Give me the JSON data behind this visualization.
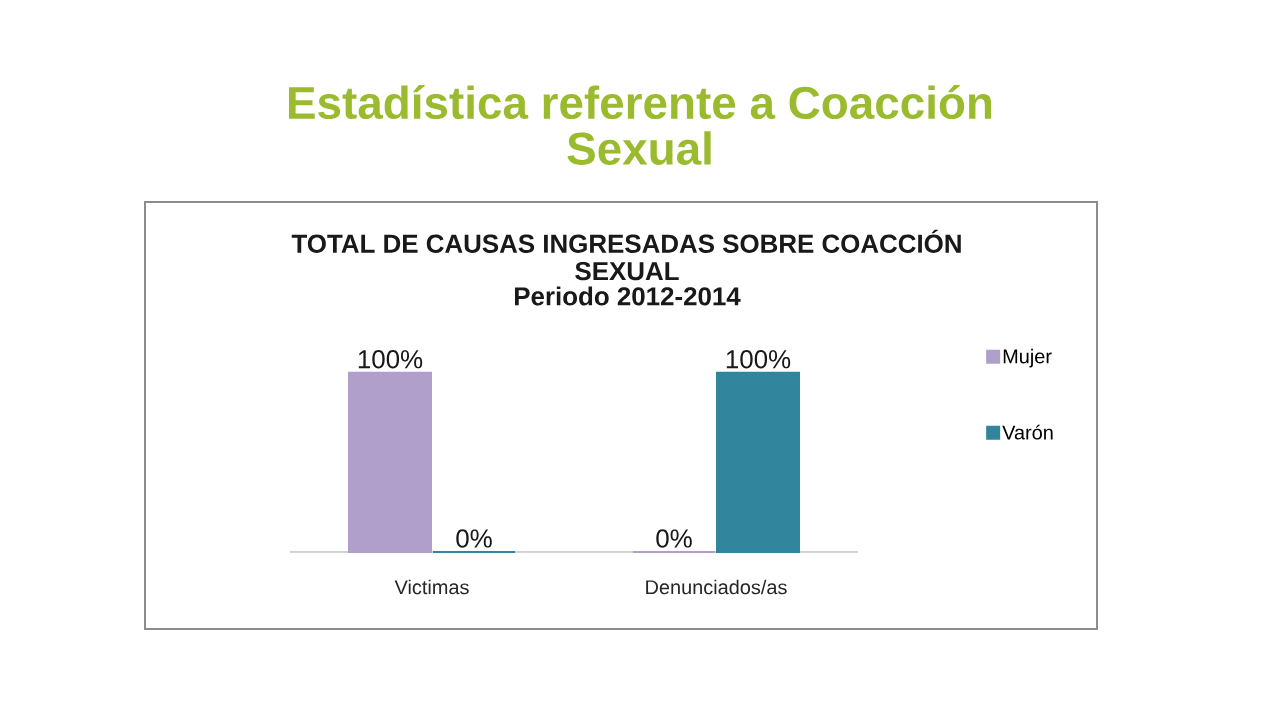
{
  "chart_data": {
    "type": "bar",
    "title": "Estadística referente a Coacción Sexual",
    "subtitle": "TOTAL DE CAUSAS INGRESADAS SOBRE COACCIÓN SEXUAL",
    "annotations": [
      "Periodo 2012-2014"
    ],
    "categories": [
      "Victimas",
      "Denunciados/as"
    ],
    "series": [
      {
        "name": "Mujer",
        "color": "#b09fca",
        "values": [
          100,
          0
        ],
        "value_labels": [
          "100%",
          "0%"
        ]
      },
      {
        "name": "Varón",
        "color": "#31859c",
        "values": [
          0,
          100
        ],
        "value_labels": [
          "0%",
          "100%"
        ]
      }
    ],
    "legend": "right"
  }
}
